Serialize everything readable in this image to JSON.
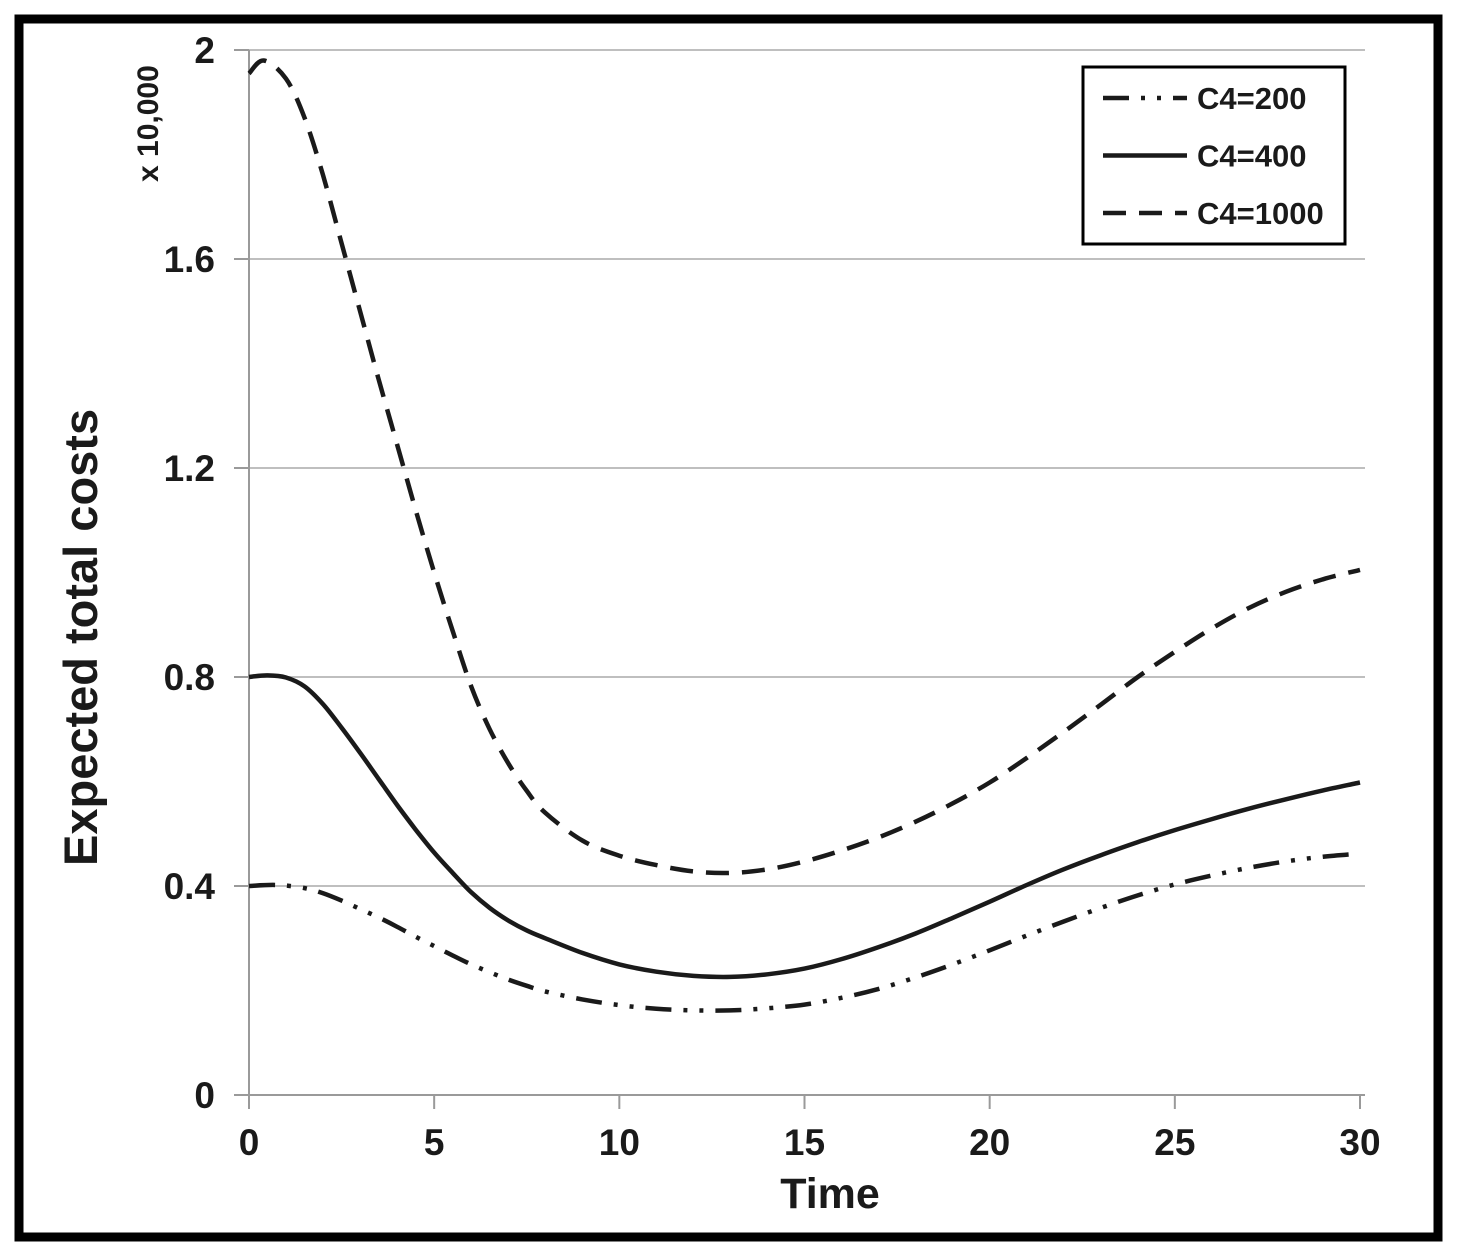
{
  "figure": {
    "background_color": "#ffffff",
    "border_color": "#000000",
    "text_color": "#1a1a1a",
    "grid_color": "#bfbfbf",
    "axis_color": "#9a9a9a",
    "series_color": "#1a1a1a"
  },
  "chart_data": {
    "type": "line",
    "title": "",
    "xlabel": "Time",
    "ylabel": "Expected total costs",
    "y_unit_label": "x 10,000",
    "xlim": [
      0,
      30
    ],
    "ylim": [
      0,
      2
    ],
    "xticks": [
      0,
      5,
      10,
      15,
      20,
      25,
      30
    ],
    "xtick_labels": [
      "0",
      "5",
      "10",
      "15",
      "20",
      "25",
      "30"
    ],
    "yticks": [
      0,
      0.4,
      0.8,
      1.2,
      1.6,
      2
    ],
    "ytick_labels": [
      "0",
      "0.4",
      "0.8",
      "1.2",
      "1.6",
      "2"
    ],
    "grid": "horizontal-only",
    "legend_position": "top-right",
    "series": [
      {
        "name": "C4=200",
        "line_style": "dash-dot-dot",
        "points": [
          [
            0,
            0.4
          ],
          [
            0.75,
            0.402
          ],
          [
            1.5,
            0.396
          ],
          [
            2,
            0.386
          ],
          [
            2.5,
            0.372
          ],
          [
            3,
            0.356
          ],
          [
            3.5,
            0.34
          ],
          [
            4,
            0.322
          ],
          [
            4.5,
            0.303
          ],
          [
            5,
            0.285
          ],
          [
            5.5,
            0.267
          ],
          [
            6,
            0.25
          ],
          [
            6.5,
            0.235
          ],
          [
            7,
            0.221
          ],
          [
            7.5,
            0.209
          ],
          [
            8,
            0.198
          ],
          [
            9,
            0.183
          ],
          [
            10,
            0.172
          ],
          [
            11,
            0.165
          ],
          [
            12,
            0.162
          ],
          [
            13,
            0.162
          ],
          [
            14,
            0.166
          ],
          [
            15,
            0.173
          ],
          [
            16,
            0.186
          ],
          [
            17,
            0.203
          ],
          [
            18,
            0.225
          ],
          [
            19,
            0.25
          ],
          [
            20,
            0.277
          ],
          [
            21,
            0.305
          ],
          [
            22,
            0.332
          ],
          [
            23,
            0.358
          ],
          [
            24,
            0.382
          ],
          [
            25,
            0.403
          ],
          [
            26,
            0.42
          ],
          [
            27,
            0.435
          ],
          [
            28,
            0.447
          ],
          [
            29,
            0.456
          ],
          [
            30,
            0.462
          ]
        ]
      },
      {
        "name": "C4=400",
        "line_style": "solid",
        "points": [
          [
            0,
            0.8
          ],
          [
            0.5,
            0.803
          ],
          [
            1,
            0.799
          ],
          [
            1.5,
            0.782
          ],
          [
            2,
            0.748
          ],
          [
            2.5,
            0.703
          ],
          [
            3,
            0.655
          ],
          [
            3.5,
            0.605
          ],
          [
            4,
            0.555
          ],
          [
            4.5,
            0.508
          ],
          [
            5,
            0.464
          ],
          [
            5.5,
            0.425
          ],
          [
            6,
            0.388
          ],
          [
            6.5,
            0.358
          ],
          [
            7,
            0.334
          ],
          [
            7.5,
            0.315
          ],
          [
            8,
            0.3
          ],
          [
            9,
            0.272
          ],
          [
            10,
            0.25
          ],
          [
            11,
            0.236
          ],
          [
            12,
            0.228
          ],
          [
            13,
            0.226
          ],
          [
            14,
            0.231
          ],
          [
            15,
            0.242
          ],
          [
            16,
            0.26
          ],
          [
            17,
            0.283
          ],
          [
            18,
            0.309
          ],
          [
            19,
            0.339
          ],
          [
            20,
            0.37
          ],
          [
            21,
            0.402
          ],
          [
            22,
            0.432
          ],
          [
            23,
            0.459
          ],
          [
            24,
            0.484
          ],
          [
            25,
            0.507
          ],
          [
            26,
            0.528
          ],
          [
            27,
            0.548
          ],
          [
            28,
            0.566
          ],
          [
            29,
            0.583
          ],
          [
            30,
            0.598
          ]
        ]
      },
      {
        "name": "C4=1000",
        "line_style": "dashed",
        "points": [
          [
            0,
            1.955
          ],
          [
            0.4,
            1.98
          ],
          [
            1,
            1.945
          ],
          [
            1.5,
            1.87
          ],
          [
            2,
            1.76
          ],
          [
            2.5,
            1.63
          ],
          [
            3,
            1.5
          ],
          [
            3.5,
            1.37
          ],
          [
            4,
            1.245
          ],
          [
            4.5,
            1.12
          ],
          [
            5,
            1.0
          ],
          [
            5.5,
            0.888
          ],
          [
            6,
            0.782
          ],
          [
            6.5,
            0.7
          ],
          [
            7,
            0.635
          ],
          [
            7.5,
            0.582
          ],
          [
            8,
            0.54
          ],
          [
            9,
            0.487
          ],
          [
            10,
            0.458
          ],
          [
            11,
            0.44
          ],
          [
            12,
            0.428
          ],
          [
            13,
            0.425
          ],
          [
            14,
            0.432
          ],
          [
            15,
            0.447
          ],
          [
            16,
            0.468
          ],
          [
            17,
            0.493
          ],
          [
            18,
            0.523
          ],
          [
            19,
            0.558
          ],
          [
            20,
            0.598
          ],
          [
            21,
            0.645
          ],
          [
            22,
            0.695
          ],
          [
            23,
            0.747
          ],
          [
            24,
            0.8
          ],
          [
            25,
            0.848
          ],
          [
            26,
            0.893
          ],
          [
            27,
            0.932
          ],
          [
            28,
            0.963
          ],
          [
            29,
            0.987
          ],
          [
            30,
            1.005
          ]
        ]
      }
    ]
  }
}
